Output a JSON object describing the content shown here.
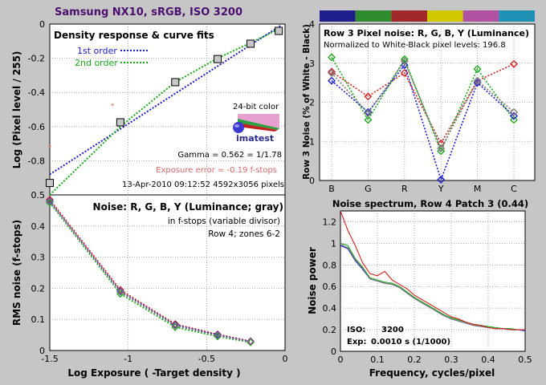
{
  "figure_title": "Samsung NX10, sRGB, ISO 3200",
  "colors": {
    "background": "#c6c6c6",
    "title": "#4b0f6e",
    "red": "#d62020",
    "green": "#18a818",
    "blue": "#1c1cd0",
    "gray": "#7a7a7a",
    "exposure_error": "#d46a6a",
    "first_order": "#1c1cd0",
    "second_order": "#18a818"
  },
  "panel_density": {
    "legend_title": "Density response & curve fits",
    "legend_first": "1st order",
    "legend_second": "2nd order",
    "logo_caption": "24-bit color",
    "logo_brand": "imatest",
    "gamma": "Gamma = 0.562 = 1/1.78",
    "exposure_error": "Exposure error = -0.19 f-stops",
    "date_size": "13-Apr-2010 09:12:52   4592x3056 pixels"
  },
  "panel_noise": {
    "title": "Noise: R, G, B, Y (Luminance; gray)",
    "sub1": "in f-stops (variable divisor)",
    "sub2": "Row 4; zones 6-2"
  },
  "panel_pixel": {
    "title": "Row 3 Pixel noise: R, G, B, Y (Luminance)",
    "subtitle": "Normalized to White-Black pixel levels: 196.8",
    "color_bar": [
      "#1e1e8c",
      "#2e8c2e",
      "#a02828",
      "#d2c800",
      "#b050a0",
      "#1e90b4"
    ]
  },
  "panel_spectrum": {
    "title": "Noise spectrum, Row 4 Patch 3 (0.44)",
    "iso_label": "ISO:",
    "iso_value": "3200",
    "exp_label": "Exp:",
    "exp_value": "0.0010 s  (1/1000)"
  },
  "chart_data": [
    {
      "id": "density",
      "type": "scatter",
      "title": "Density response & curve fits",
      "xlabel": "",
      "ylabel": "Log (Pixel level / 255)",
      "xlim": [
        -1.5,
        0
      ],
      "ylim": [
        -1.0,
        0
      ],
      "xticks": [
        -1.5,
        -1,
        -0.5,
        0
      ],
      "yticks": [
        0,
        -0.2,
        -0.4,
        -0.6,
        -0.8
      ],
      "grid": true,
      "points": {
        "x": [
          -1.5,
          -1.05,
          -0.7,
          -0.43,
          -0.22,
          -0.04
        ],
        "y": [
          -0.93,
          -0.575,
          -0.34,
          -0.205,
          -0.115,
          -0.04
        ]
      },
      "extra_points": {
        "x": [
          -1.5,
          -1.1
        ],
        "y": [
          -0.72,
          -0.48
        ]
      },
      "fits": [
        {
          "name": "1st order",
          "x": [
            -1.5,
            -0.03
          ],
          "y": [
            -0.88,
            -0.01
          ]
        },
        {
          "name": "2nd order",
          "x": [
            -1.5,
            -1.05,
            -0.7,
            -0.43,
            -0.22,
            -0.02
          ],
          "y": [
            -1.0,
            -0.6,
            -0.34,
            -0.2,
            -0.11,
            -0.02
          ]
        }
      ]
    },
    {
      "id": "noise_fstops",
      "type": "line",
      "title": "Noise: R, G, B, Y (Luminance; gray)",
      "xlabel": "Log Exposure ( -Target density )",
      "ylabel": "RMS noise (f-stops)",
      "xlim": [
        -1.5,
        0
      ],
      "ylim": [
        0,
        0.5
      ],
      "xticks": [
        -1.5,
        -1,
        -0.5,
        0
      ],
      "yticks": [
        0,
        0.1,
        0.2,
        0.3,
        0.4,
        0.5
      ],
      "grid": true,
      "x": [
        -1.5,
        -1.05,
        -0.7,
        -0.43,
        -0.22
      ],
      "series": [
        {
          "name": "R",
          "values": [
            0.485,
            0.195,
            0.085,
            0.052,
            0.03
          ]
        },
        {
          "name": "G",
          "values": [
            0.475,
            0.182,
            0.075,
            0.045,
            0.026
          ]
        },
        {
          "name": "B",
          "values": [
            0.48,
            0.19,
            0.082,
            0.05,
            0.029
          ]
        },
        {
          "name": "Y",
          "values": [
            0.478,
            0.188,
            0.08,
            0.048,
            0.028
          ]
        }
      ]
    },
    {
      "id": "pixel_noise",
      "type": "line",
      "title": "Row 3 Pixel noise: R, G, B, Y (Luminance)",
      "xlabel": "",
      "ylabel": "Row 3 Noise (% of White - Black)",
      "categories": [
        "B",
        "G",
        "R",
        "Y",
        "M",
        "C"
      ],
      "ylim": [
        0,
        4
      ],
      "yticks": [
        0,
        1,
        2,
        3,
        4
      ],
      "grid": true,
      "series": [
        {
          "name": "R",
          "values": [
            2.78,
            2.15,
            2.75,
            0.95,
            2.55,
            2.98
          ]
        },
        {
          "name": "G",
          "values": [
            3.15,
            1.55,
            3.1,
            0.75,
            2.85,
            1.55
          ]
        },
        {
          "name": "B",
          "values": [
            2.55,
            1.75,
            2.95,
            0.02,
            2.5,
            1.65
          ]
        },
        {
          "name": "Y",
          "values": [
            2.75,
            1.72,
            3.05,
            0.82,
            2.55,
            1.75
          ]
        }
      ]
    },
    {
      "id": "spectrum",
      "type": "line",
      "title": "Noise spectrum, Row 4 Patch 3 (0.44)",
      "xlabel": "Frequency, cycles/pixel",
      "ylabel": "Noise power",
      "xlim": [
        0,
        0.5
      ],
      "ylim": [
        0,
        1.3
      ],
      "xticks": [
        0,
        0.1,
        0.2,
        0.3,
        0.4,
        0.5
      ],
      "yticks": [
        0,
        0.2,
        0.4,
        0.6,
        0.8,
        1,
        1.2
      ],
      "grid": true,
      "x": [
        0,
        0.02,
        0.04,
        0.06,
        0.08,
        0.1,
        0.12,
        0.14,
        0.16,
        0.18,
        0.2,
        0.22,
        0.24,
        0.26,
        0.28,
        0.3,
        0.32,
        0.34,
        0.36,
        0.38,
        0.4,
        0.42,
        0.44,
        0.46,
        0.48,
        0.5
      ],
      "series": [
        {
          "name": "R",
          "values": [
            1.3,
            1.12,
            0.98,
            0.82,
            0.72,
            0.7,
            0.74,
            0.66,
            0.62,
            0.58,
            0.52,
            0.48,
            0.44,
            0.4,
            0.36,
            0.32,
            0.3,
            0.27,
            0.25,
            0.24,
            0.22,
            0.21,
            0.21,
            0.2,
            0.2,
            0.2
          ]
        },
        {
          "name": "G",
          "values": [
            1.0,
            0.98,
            0.86,
            0.78,
            0.68,
            0.66,
            0.64,
            0.63,
            0.6,
            0.55,
            0.5,
            0.46,
            0.42,
            0.38,
            0.34,
            0.31,
            0.29,
            0.27,
            0.25,
            0.24,
            0.23,
            0.22,
            0.21,
            0.21,
            0.2,
            0.2
          ]
        },
        {
          "name": "B",
          "values": [
            0.98,
            0.95,
            0.84,
            0.76,
            0.67,
            0.65,
            0.63,
            0.62,
            0.59,
            0.54,
            0.49,
            0.45,
            0.41,
            0.37,
            0.33,
            0.3,
            0.28,
            0.26,
            0.24,
            0.23,
            0.22,
            0.21,
            0.21,
            0.2,
            0.2,
            0.19
          ]
        },
        {
          "name": "Y",
          "values": [
            0.99,
            0.96,
            0.85,
            0.77,
            0.67,
            0.65,
            0.63,
            0.62,
            0.59,
            0.54,
            0.49,
            0.45,
            0.41,
            0.37,
            0.33,
            0.3,
            0.28,
            0.26,
            0.24,
            0.23,
            0.22,
            0.21,
            0.21,
            0.2,
            0.2,
            0.2
          ]
        }
      ]
    }
  ]
}
